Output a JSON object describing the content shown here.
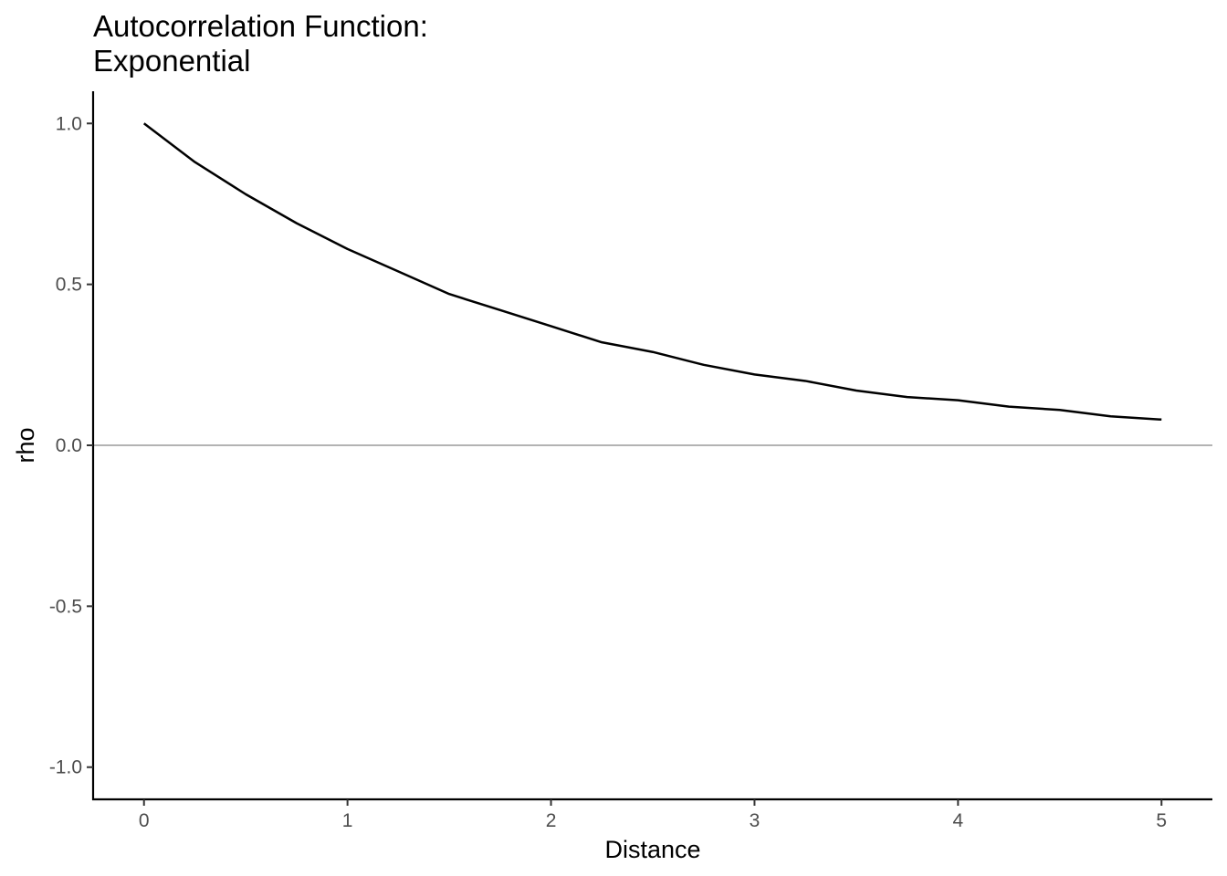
{
  "chart_data": {
    "type": "line",
    "title": [
      "Autocorrelation Function:",
      "Exponential"
    ],
    "xlabel": "Distance",
    "ylabel": "rho",
    "xlim": [
      -0.25,
      5.25
    ],
    "ylim": [
      -1.1,
      1.1
    ],
    "x_ticks": [
      0,
      1,
      2,
      3,
      4,
      5
    ],
    "x_tick_labels": [
      "0",
      "1",
      "2",
      "3",
      "4",
      "5"
    ],
    "y_ticks": [
      -1.0,
      -0.5,
      0.0,
      0.5,
      1.0
    ],
    "y_tick_labels": [
      "-1.0",
      "-0.5",
      "0.0",
      "0.5",
      "1.0"
    ],
    "grid": false,
    "reference_line": {
      "y": 0,
      "color": "#b3b3b3"
    },
    "series": [
      {
        "color": "#000000",
        "x": [
          0,
          0.25,
          0.5,
          0.75,
          1,
          1.25,
          1.5,
          1.75,
          2,
          2.25,
          2.5,
          2.75,
          3,
          3.25,
          3.5,
          3.75,
          4,
          4.25,
          4.5,
          4.75,
          5
        ],
        "y": [
          1.0,
          0.88,
          0.78,
          0.69,
          0.61,
          0.54,
          0.47,
          0.42,
          0.37,
          0.32,
          0.29,
          0.25,
          0.22,
          0.2,
          0.17,
          0.15,
          0.14,
          0.12,
          0.11,
          0.09,
          0.08
        ]
      }
    ]
  }
}
